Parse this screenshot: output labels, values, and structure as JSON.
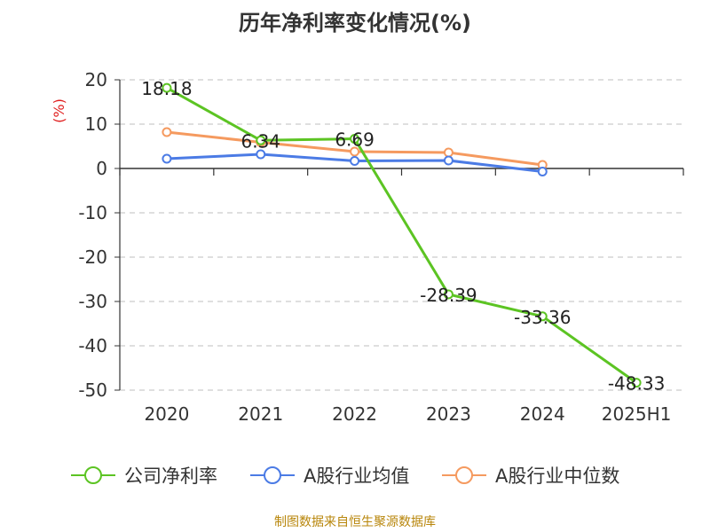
{
  "chart_data": {
    "type": "line",
    "title": "历年净利率变化情况(%)",
    "unit_label": "(%)",
    "categories": [
      "2020",
      "2021",
      "2022",
      "2023",
      "2024",
      "2025H1"
    ],
    "ylim": [
      -50,
      20
    ],
    "yticks": [
      20,
      10,
      0,
      -10,
      -20,
      -30,
      -40,
      -50
    ],
    "grid": true,
    "legend_position": "bottom",
    "series": [
      {
        "name": "公司净利率",
        "color": "#5cc423",
        "values": [
          18.18,
          6.34,
          6.69,
          -28.39,
          -33.36,
          -48.33
        ],
        "labels": [
          "18.18",
          "6.34",
          "6.69",
          "-28.39",
          "-33.36",
          "-48.33"
        ]
      },
      {
        "name": "A股行业均值",
        "color": "#4b7be5",
        "values": [
          2.2,
          3.2,
          1.7,
          1.8,
          -0.7,
          null
        ]
      },
      {
        "name": "A股行业中位数",
        "color": "#f59a5f",
        "values": [
          8.2,
          5.9,
          3.8,
          3.6,
          0.8,
          null
        ]
      }
    ]
  },
  "source_note": "制图数据来自恒生聚源数据库"
}
